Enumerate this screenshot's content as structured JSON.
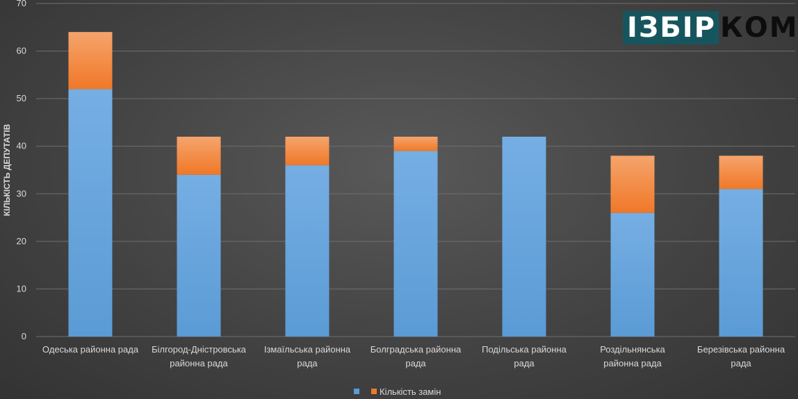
{
  "logo": {
    "part1": "ІЗБІР",
    "part2": "КОМ"
  },
  "colors": {
    "series_a": "#5b9bd5",
    "series_a_top": "#75aee3",
    "series_b": "#f07828",
    "series_b_top": "#f5a46c",
    "grid": "#6f6f6f"
  },
  "chart_data": {
    "type": "bar",
    "stacked": true,
    "categories": [
      [
        "Одеська районна рада"
      ],
      [
        "Білгород-Дністровська",
        "районна рада"
      ],
      [
        "Ізмаїльська районна",
        "рада"
      ],
      [
        "Болградська районна",
        "рада"
      ],
      [
        "Подільська районна",
        "рада"
      ],
      [
        "Роздільнянська",
        "районна рада"
      ],
      [
        "Березівська районна",
        "рада"
      ]
    ],
    "series": [
      {
        "name": "",
        "values": [
          52,
          34,
          36,
          39,
          42,
          26,
          31
        ]
      },
      {
        "name": "Кількість замін",
        "values": [
          12,
          8,
          6,
          3,
          0,
          12,
          7
        ]
      }
    ],
    "ylabel": "КІЛЬКІСТЬ ДЕПУТАТІВ",
    "xlabel": "",
    "ylim": [
      0,
      70
    ],
    "yticks": [
      0,
      10,
      20,
      30,
      40,
      50,
      60,
      70
    ],
    "grid": true,
    "legend_position": "bottom"
  }
}
